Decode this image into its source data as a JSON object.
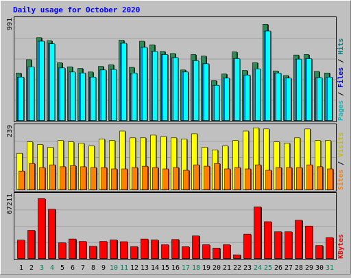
{
  "chart_data": [
    {
      "type": "bar",
      "title": "Daily usage for October 2020",
      "ymax_label": "991",
      "ylim": [
        0,
        991
      ],
      "categories": [
        "1",
        "2",
        "3",
        "4",
        "5",
        "6",
        "7",
        "8",
        "9",
        "10",
        "11",
        "12",
        "13",
        "14",
        "15",
        "16",
        "17",
        "18",
        "19",
        "20",
        "21",
        "22",
        "23",
        "24",
        "25",
        "26",
        "27",
        "28",
        "29",
        "30",
        "31"
      ],
      "weekend_days": [
        "3",
        "4",
        "10",
        "11",
        "17",
        "18",
        "24",
        "25",
        "31"
      ],
      "series": [
        {
          "name": "Hits",
          "color": "#2e8b57",
          "values": [
            470,
            600,
            815,
            785,
            570,
            530,
            515,
            480,
            535,
            550,
            790,
            525,
            780,
            745,
            680,
            660,
            500,
            650,
            635,
            395,
            460,
            675,
            495,
            570,
            945,
            490,
            445,
            645,
            650,
            485,
            470
          ]
        },
        {
          "name": "Files",
          "color": "#0000ff",
          "values": [
            430,
            530,
            780,
            755,
            520,
            480,
            470,
            430,
            500,
            505,
            760,
            470,
            720,
            680,
            650,
            620,
            480,
            590,
            560,
            350,
            420,
            610,
            450,
            510,
            880,
            470,
            420,
            605,
            610,
            425,
            430
          ]
        },
        {
          "name": "Pages",
          "color": "#00ffff",
          "values": [
            430,
            530,
            780,
            755,
            520,
            480,
            470,
            430,
            500,
            505,
            760,
            470,
            720,
            680,
            650,
            620,
            480,
            590,
            560,
            350,
            420,
            610,
            450,
            510,
            880,
            470,
            420,
            605,
            610,
            425,
            430
          ]
        }
      ],
      "right_label": [
        "Pages",
        "Files",
        "Hits"
      ]
    },
    {
      "type": "bar",
      "ymax_label": "239",
      "ylim": [
        0,
        239
      ],
      "categories": [
        "1",
        "2",
        "3",
        "4",
        "5",
        "6",
        "7",
        "8",
        "9",
        "10",
        "11",
        "12",
        "13",
        "14",
        "15",
        "16",
        "17",
        "18",
        "19",
        "20",
        "21",
        "22",
        "23",
        "24",
        "25",
        "26",
        "27",
        "28",
        "29",
        "30",
        "31"
      ],
      "series": [
        {
          "name": "Visits",
          "color": "#ffff00",
          "values": [
            138,
            180,
            170,
            160,
            185,
            180,
            175,
            165,
            190,
            185,
            220,
            195,
            195,
            205,
            200,
            195,
            190,
            210,
            160,
            150,
            165,
            185,
            220,
            232,
            228,
            180,
            175,
            195,
            228,
            185,
            185
          ]
        },
        {
          "name": "Sites",
          "color": "#ff8000",
          "values": [
            72,
            100,
            85,
            95,
            88,
            92,
            88,
            85,
            85,
            80,
            80,
            85,
            90,
            85,
            80,
            85,
            75,
            95,
            90,
            100,
            80,
            85,
            80,
            95,
            75,
            85,
            85,
            85,
            95,
            88,
            80
          ]
        }
      ],
      "right_label": [
        "Sites",
        "Visits"
      ]
    },
    {
      "type": "bar",
      "ymax_label": "67211",
      "ylim": [
        0,
        67211
      ],
      "categories": [
        "1",
        "2",
        "3",
        "4",
        "5",
        "6",
        "7",
        "8",
        "9",
        "10",
        "11",
        "12",
        "13",
        "14",
        "15",
        "16",
        "17",
        "18",
        "19",
        "20",
        "21",
        "22",
        "23",
        "24",
        "25",
        "26",
        "27",
        "28",
        "29",
        "30",
        "31"
      ],
      "series": [
        {
          "name": "KBytes",
          "color": "#ff0000",
          "values": [
            19800,
            30000,
            63000,
            52000,
            17000,
            21000,
            18500,
            13500,
            18500,
            20000,
            18200,
            13000,
            21000,
            20000,
            15000,
            20500,
            13000,
            24200,
            15000,
            11500,
            15000,
            4500,
            26000,
            54500,
            39000,
            28500,
            28500,
            40500,
            34500,
            14200,
            22500
          ]
        }
      ],
      "right_label": [
        "KBytes"
      ]
    }
  ]
}
